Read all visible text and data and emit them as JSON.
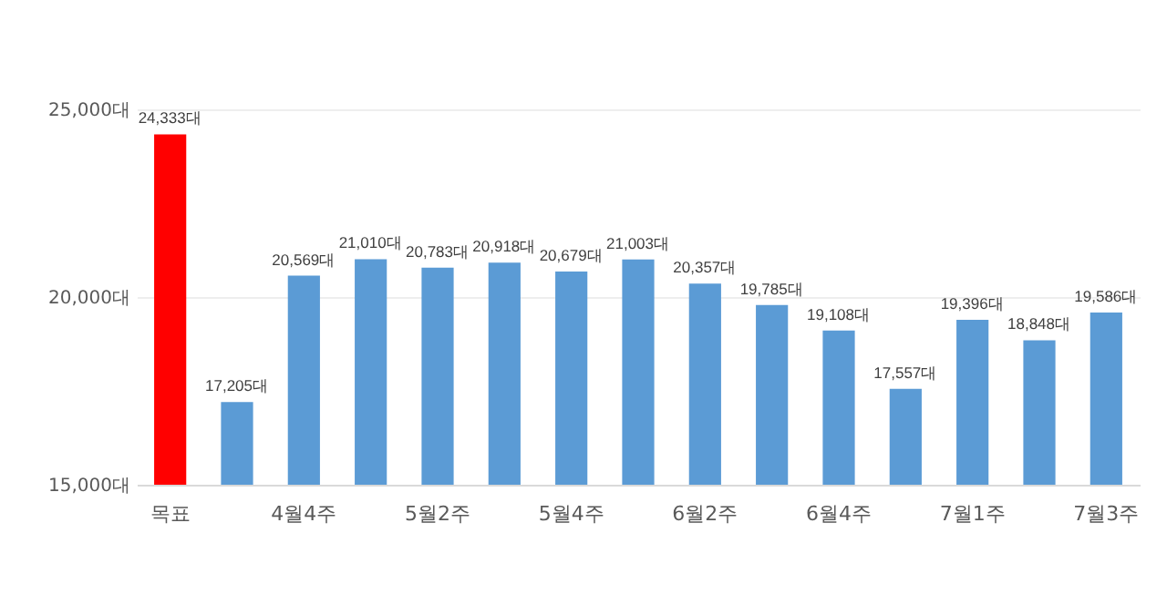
{
  "chart_data": {
    "type": "bar",
    "categories": [
      "목표",
      null,
      "4월4주",
      null,
      "5월2주",
      null,
      "5월4주",
      null,
      "6월2주",
      null,
      "6월4주",
      null,
      "7월1주",
      null,
      "7월3주"
    ],
    "values": [
      24333,
      17205,
      20569,
      21010,
      20783,
      20918,
      20679,
      21003,
      20357,
      19785,
      19108,
      17557,
      19396,
      18848,
      19586
    ],
    "colors": [
      "#ff0000",
      "#5b9bd5",
      "#5b9bd5",
      "#5b9bd5",
      "#5b9bd5",
      "#5b9bd5",
      "#5b9bd5",
      "#5b9bd5",
      "#5b9bd5",
      "#5b9bd5",
      "#5b9bd5",
      "#5b9bd5",
      "#5b9bd5",
      "#5b9bd5",
      "#5b9bd5"
    ],
    "value_labels": [
      "24,333대",
      "17,205대",
      "20,569대",
      "21,010대",
      "20,783대",
      "20,918대",
      "20,679대",
      "21,003대",
      "20,357대",
      "19,785대",
      "19,108대",
      "17,557대",
      "19,396대",
      "18,848대",
      "19,586대"
    ],
    "ylim": [
      15000,
      25000
    ],
    "yticks": [
      {
        "value": 15000,
        "label": "15,000대"
      },
      {
        "value": 20000,
        "label": "20,000대"
      },
      {
        "value": 25000,
        "label": "25,000대"
      }
    ],
    "grid": "y"
  }
}
